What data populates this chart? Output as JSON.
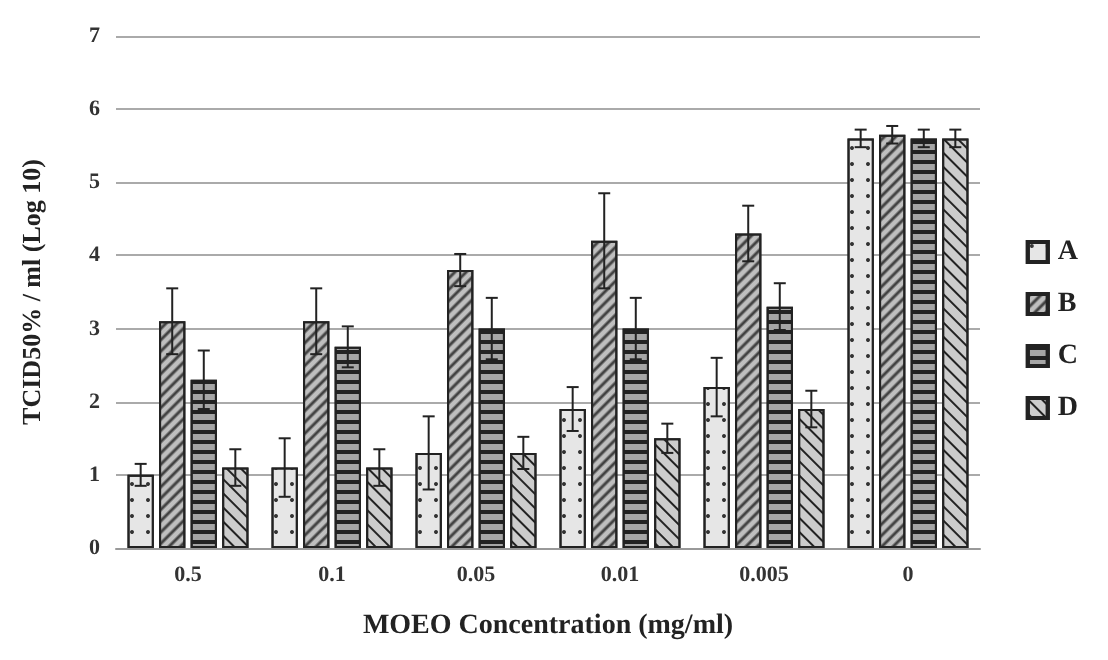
{
  "chart_data": {
    "type": "bar",
    "xlabel": "MOEO Concentration (mg/ml)",
    "ylabel": "TCID50% / ml (Log 10)",
    "categories": [
      "0.5",
      "0.1",
      "0.05",
      "0.01",
      "0.005",
      "0"
    ],
    "series": [
      {
        "name": "A",
        "color": "#e6e6e6",
        "values": [
          1.0,
          1.1,
          1.3,
          1.9,
          2.2,
          5.6
        ],
        "errors": [
          0.15,
          0.4,
          0.5,
          0.3,
          0.4,
          0.12
        ]
      },
      {
        "name": "B",
        "color": "#bfbfbf",
        "values": [
          3.1,
          3.1,
          3.8,
          4.2,
          4.3,
          5.65
        ],
        "errors": [
          0.45,
          0.45,
          0.22,
          0.65,
          0.38,
          0.12
        ]
      },
      {
        "name": "C",
        "color": "#a6a6a6",
        "values": [
          2.3,
          2.75,
          3.0,
          3.0,
          3.3,
          5.6
        ],
        "errors": [
          0.4,
          0.28,
          0.42,
          0.42,
          0.32,
          0.12
        ]
      },
      {
        "name": "D",
        "color": "#cccccc",
        "values": [
          1.1,
          1.1,
          1.3,
          1.5,
          1.9,
          5.6
        ],
        "errors": [
          0.25,
          0.25,
          0.22,
          0.2,
          0.25,
          0.12
        ]
      }
    ],
    "ylim": [
      0,
      7
    ],
    "yticks": [
      0,
      1,
      2,
      3,
      4,
      5,
      6,
      7
    ],
    "grid": "y",
    "legend": "right"
  }
}
